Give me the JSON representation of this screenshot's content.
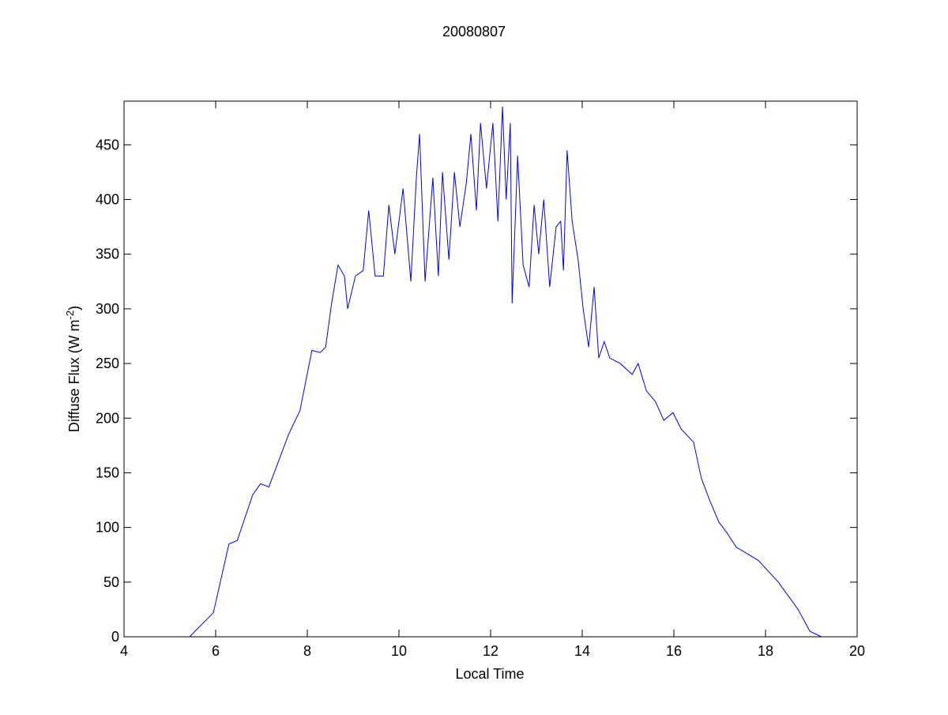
{
  "chart_data": {
    "type": "line",
    "title": "20080807",
    "xlabel": "Local Time",
    "ylabel": {
      "base": "Diffuse Flux (W m",
      "superscript": "-2",
      "close": ")"
    },
    "x": [
      5.43,
      5.95,
      6.29,
      6.47,
      6.81,
      6.98,
      7.16,
      7.59,
      7.84,
      8.1,
      8.28,
      8.4,
      8.53,
      8.67,
      8.81,
      8.88,
      9.05,
      9.22,
      9.34,
      9.48,
      9.66,
      9.78,
      9.91,
      10.09,
      10.26,
      10.38,
      10.45,
      10.57,
      10.74,
      10.86,
      10.95,
      11.09,
      11.21,
      11.33,
      11.47,
      11.57,
      11.69,
      11.78,
      11.91,
      12.05,
      12.16,
      12.26,
      12.34,
      12.43,
      12.47,
      12.59,
      12.71,
      12.84,
      12.95,
      13.05,
      13.16,
      13.29,
      13.43,
      13.53,
      13.59,
      13.67,
      13.78,
      13.91,
      14.02,
      14.14,
      14.26,
      14.36,
      14.48,
      14.6,
      14.83,
      15.09,
      15.22,
      15.4,
      15.6,
      15.78,
      15.98,
      16.16,
      16.43,
      16.6,
      16.78,
      16.98,
      17.16,
      17.36,
      17.84,
      18.28,
      18.71,
      18.97,
      19.22
    ],
    "series": [
      {
        "color": "#0000ff",
        "values": [
          0,
          22,
          85,
          88,
          130,
          140,
          137,
          185,
          207,
          262,
          260,
          265,
          305,
          340,
          330,
          300,
          330,
          335,
          390,
          330,
          330,
          395,
          350,
          410,
          325,
          420,
          460,
          325,
          420,
          330,
          425,
          345,
          425,
          375,
          415,
          460,
          390,
          470,
          410,
          470,
          380,
          485,
          400,
          470,
          305,
          440,
          340,
          320,
          395,
          350,
          400,
          320,
          375,
          380,
          335,
          445,
          380,
          345,
          300,
          265,
          320,
          255,
          270,
          255,
          250,
          240,
          250,
          225,
          215,
          198,
          205,
          190,
          178,
          145,
          125,
          105,
          95,
          82,
          70,
          50,
          25,
          5,
          0
        ]
      }
    ],
    "xlim": [
      4,
      20
    ],
    "xticks": [
      4,
      6,
      8,
      10,
      12,
      14,
      16,
      18,
      20
    ],
    "ylim": [
      0,
      490
    ],
    "yticks": [
      0,
      50,
      100,
      150,
      200,
      250,
      300,
      350,
      400,
      450
    ]
  }
}
